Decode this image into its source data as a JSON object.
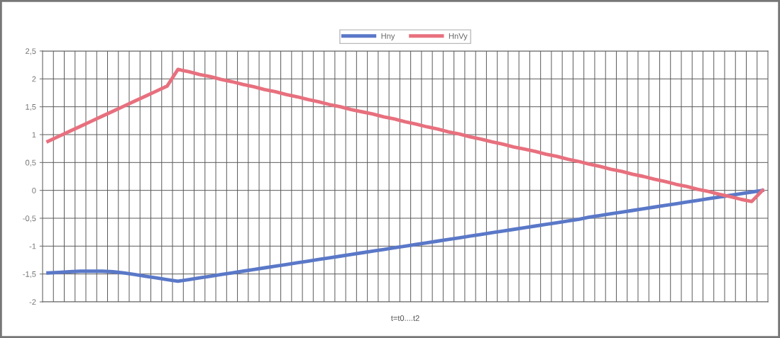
{
  "chart_data": {
    "type": "line",
    "xlabel": "t=t0....t2",
    "categories": [
      null,
      null,
      null,
      null,
      null,
      null,
      null,
      null,
      null,
      null,
      null,
      null,
      null,
      null,
      null,
      null,
      null,
      null,
      null,
      null,
      null,
      null,
      null,
      null,
      null,
      null,
      null,
      null,
      null,
      null,
      null,
      null,
      null,
      null,
      null,
      null,
      null,
      null,
      null,
      null,
      null,
      null,
      null,
      null,
      null,
      null,
      null,
      null,
      null,
      null,
      null,
      null,
      null,
      null,
      null,
      null,
      null,
      null,
      null,
      null,
      null,
      null,
      null,
      null,
      null,
      null,
      null
    ],
    "series": [
      {
        "name": "Hny",
        "color": "#5a78c8",
        "values": [
          -1.48,
          -1.47,
          -1.46,
          -1.45,
          -1.45,
          -1.45,
          -1.46,
          -1.48,
          -1.51,
          -1.54,
          -1.57,
          -1.6,
          -1.63,
          -1.6,
          -1.57,
          -1.54,
          -1.51,
          -1.48,
          -1.45,
          -1.42,
          -1.39,
          -1.36,
          -1.33,
          -1.3,
          -1.27,
          -1.24,
          -1.21,
          -1.18,
          -1.15,
          -1.12,
          -1.09,
          -1.06,
          -1.03,
          -1.0,
          -0.97,
          -0.94,
          -0.91,
          -0.88,
          -0.85,
          -0.82,
          -0.79,
          -0.76,
          -0.73,
          -0.7,
          -0.67,
          -0.64,
          -0.61,
          -0.58,
          -0.55,
          -0.52,
          -0.48,
          -0.45,
          -0.42,
          -0.39,
          -0.36,
          -0.33,
          -0.3,
          -0.27,
          -0.24,
          -0.21,
          -0.18,
          -0.15,
          -0.12,
          -0.09,
          -0.06,
          -0.03,
          0.0
        ]
      },
      {
        "name": "HnVy",
        "color": "#e8707e",
        "values": [
          0.88,
          0.97,
          1.06,
          1.15,
          1.24,
          1.33,
          1.42,
          1.51,
          1.6,
          1.69,
          1.78,
          1.87,
          2.17,
          2.13,
          2.08,
          2.04,
          1.99,
          1.95,
          1.9,
          1.86,
          1.81,
          1.77,
          1.72,
          1.68,
          1.63,
          1.59,
          1.54,
          1.5,
          1.45,
          1.41,
          1.37,
          1.32,
          1.28,
          1.23,
          1.19,
          1.14,
          1.1,
          1.05,
          1.01,
          0.96,
          0.92,
          0.87,
          0.83,
          0.78,
          0.74,
          0.7,
          0.65,
          0.61,
          0.56,
          0.52,
          0.47,
          0.43,
          0.38,
          0.34,
          0.29,
          0.25,
          0.2,
          0.16,
          0.11,
          0.07,
          0.02,
          -0.02,
          -0.07,
          -0.11,
          -0.16,
          -0.2,
          0.0
        ]
      }
    ],
    "ylim": [
      -2,
      2.5
    ],
    "yticks": [
      {
        "value": -2,
        "label": "-2"
      },
      {
        "value": -1.5,
        "label": "-1,5"
      },
      {
        "value": -1,
        "label": "-1"
      },
      {
        "value": -0.5,
        "label": "-0,5"
      },
      0,
      {
        "value": 0.5,
        "label": "0,5"
      },
      1,
      {
        "value": 1.5,
        "label": "1,5"
      },
      2,
      {
        "value": 2.5,
        "label": "2,5"
      }
    ],
    "grid": true,
    "legend": "top",
    "marker": "none",
    "line_style": "solid"
  }
}
